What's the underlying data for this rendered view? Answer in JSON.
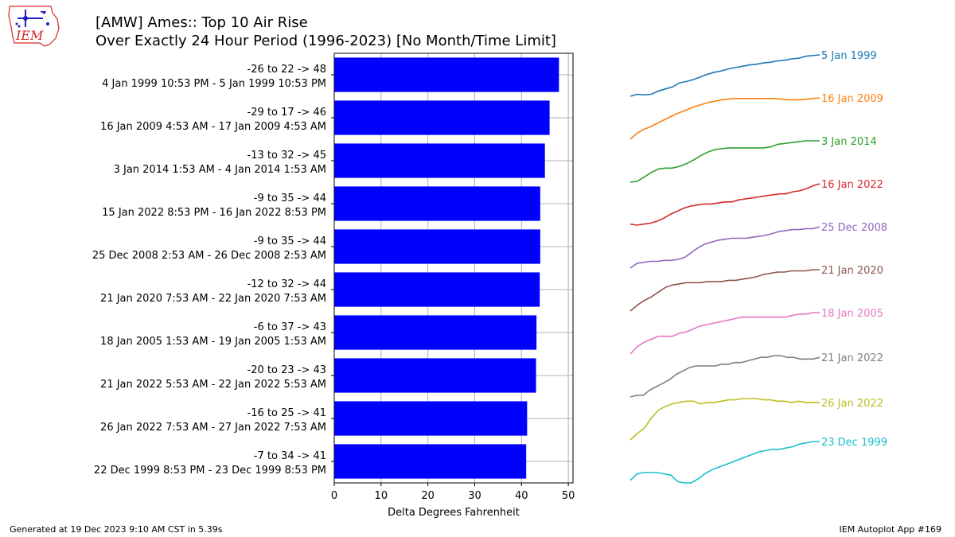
{
  "title": {
    "line1": "[AMW] Ames:: Top 10 Air Rise",
    "line2": "Over Exactly 24 Hour Period (1996-2023) [No Month/Time Limit]"
  },
  "logo": {
    "text": "IEM"
  },
  "footer": {
    "left": "Generated at 19 Dec 2023 9:10 AM CST in 5.39s",
    "right": "IEM Autoplot App #169"
  },
  "colors": {
    "bar": "#0000ff",
    "grid": "#b0b0b0",
    "logo_red": "#d62728",
    "logo_blue": "#1f1fbf"
  },
  "chart_data": {
    "type": "bar",
    "orientation": "horizontal",
    "xlabel": "Delta Degrees Fahrenheit",
    "xlim": [
      0,
      51
    ],
    "xticks": [
      0,
      10,
      20,
      30,
      40,
      50
    ],
    "grid": true,
    "categories": [
      {
        "line1": "-26 to 22 -> 48",
        "line2": "4 Jan 1999 10:53 PM - 5 Jan 1999 10:53 PM"
      },
      {
        "line1": "-29 to 17 -> 46",
        "line2": "16 Jan 2009 4:53 AM - 17 Jan 2009 4:53 AM"
      },
      {
        "line1": "-13 to 32 -> 45",
        "line2": "3 Jan 2014 1:53 AM - 4 Jan 2014 1:53 AM"
      },
      {
        "line1": "-9 to 35 -> 44",
        "line2": "15 Jan 2022 8:53 PM - 16 Jan 2022 8:53 PM"
      },
      {
        "line1": "-9 to 35 -> 44",
        "line2": "25 Dec 2008 2:53 AM - 26 Dec 2008 2:53 AM"
      },
      {
        "line1": "-12 to 32 -> 44",
        "line2": "21 Jan 2020 7:53 AM - 22 Jan 2020 7:53 AM"
      },
      {
        "line1": "-6 to 37 -> 43",
        "line2": "18 Jan 2005 1:53 AM - 19 Jan 2005 1:53 AM"
      },
      {
        "line1": "-20 to 23 -> 43",
        "line2": "21 Jan 2022 5:53 AM - 22 Jan 2022 5:53 AM"
      },
      {
        "line1": "-16 to 25 -> 41",
        "line2": "26 Jan 2022 7:53 AM - 27 Jan 2022 7:53 AM"
      },
      {
        "line1": "-7 to 34 -> 41",
        "line2": "22 Dec 1999 8:53 PM - 23 Dec 1999 8:53 PM"
      }
    ],
    "values": [
      48,
      46,
      45,
      44,
      44,
      43.9,
      43.2,
      43.1,
      41.2,
      41
    ],
    "sparklines": [
      {
        "name": "5 Jan 1999",
        "color": "#1f77b4",
        "values": [
          0,
          3,
          2,
          3,
          8,
          11,
          14,
          20,
          22,
          25,
          29,
          33,
          36,
          38,
          41,
          43,
          45,
          47,
          48,
          50,
          51,
          53,
          54,
          56,
          57,
          60,
          61,
          62
        ]
      },
      {
        "name": "16 Jan 2009",
        "color": "#ff7f0e",
        "values": [
          -1,
          8,
          14,
          18,
          23,
          28,
          33,
          38,
          42,
          46,
          50,
          53,
          56,
          58,
          60,
          61,
          62,
          62,
          62,
          62,
          62,
          62,
          62,
          61,
          60,
          60,
          60,
          61,
          62,
          63
        ]
      },
      {
        "name": "3 Jan 2014",
        "color": "#2ca02c",
        "values": [
          -1,
          0,
          5,
          10,
          14,
          15,
          15,
          17,
          20,
          24,
          29,
          33,
          36,
          37,
          38,
          38,
          38,
          38,
          38,
          38,
          39,
          42,
          43,
          44,
          45,
          46,
          46,
          46
        ]
      },
      {
        "name": "16 Jan 2022",
        "color": "#d62728",
        "values": [
          0,
          -1,
          0,
          1,
          3,
          6,
          10,
          13,
          16,
          18,
          19,
          20,
          20,
          21,
          22,
          22,
          24,
          25,
          26,
          27,
          28,
          29,
          30,
          30,
          32,
          33,
          35,
          38,
          40
        ]
      },
      {
        "name": "25 Dec 2008",
        "color": "#9467bd",
        "values": [
          -1,
          4,
          5,
          6,
          6,
          7,
          7,
          8,
          10,
          15,
          20,
          24,
          26,
          28,
          29,
          30,
          30,
          30,
          31,
          32,
          33,
          35,
          37,
          38,
          39,
          39,
          40,
          40,
          42
        ]
      },
      {
        "name": "21 Jan 2020",
        "color": "#8c564b",
        "values": [
          0,
          5,
          9,
          12,
          16,
          20,
          22,
          23,
          24,
          24,
          24,
          25,
          25,
          25,
          26,
          26,
          27,
          28,
          29,
          31,
          32,
          33,
          33,
          34,
          34,
          34,
          35,
          35
        ]
      },
      {
        "name": "18 Jan 2005",
        "color": "#e377c2",
        "values": [
          -1,
          4,
          7,
          9,
          11,
          11,
          11,
          13,
          14,
          16,
          18,
          19,
          20,
          21,
          22,
          23,
          24,
          24,
          24,
          24,
          24,
          24,
          24,
          25,
          26,
          26,
          27,
          27
        ]
      },
      {
        "name": "21 Jan 2022",
        "color": "#7f7f7f",
        "values": [
          0,
          1,
          1,
          4,
          6,
          8,
          10,
          13,
          15,
          17,
          18,
          18,
          18,
          18,
          19,
          19,
          20,
          20,
          21,
          22,
          23,
          23,
          24,
          24,
          23,
          23,
          22,
          22,
          22,
          23
        ]
      },
      {
        "name": "26 Jan 2022",
        "color": "#bcbd22",
        "values": [
          -1,
          4,
          8,
          16,
          22,
          25,
          27,
          28,
          29,
          29,
          27,
          28,
          28,
          29,
          30,
          30,
          31,
          31,
          31,
          30,
          30,
          29,
          29,
          28,
          29,
          28,
          28,
          28
        ]
      },
      {
        "name": "23 Dec 1999",
        "color": "#17becf",
        "values": [
          -10,
          -5,
          -4,
          -4,
          -4,
          -5,
          -6,
          -11,
          -12,
          -12,
          -9,
          -5,
          -2,
          0,
          2,
          4,
          6,
          8,
          10,
          12,
          13,
          14,
          14,
          15,
          16,
          18,
          19,
          20,
          20
        ]
      }
    ]
  }
}
